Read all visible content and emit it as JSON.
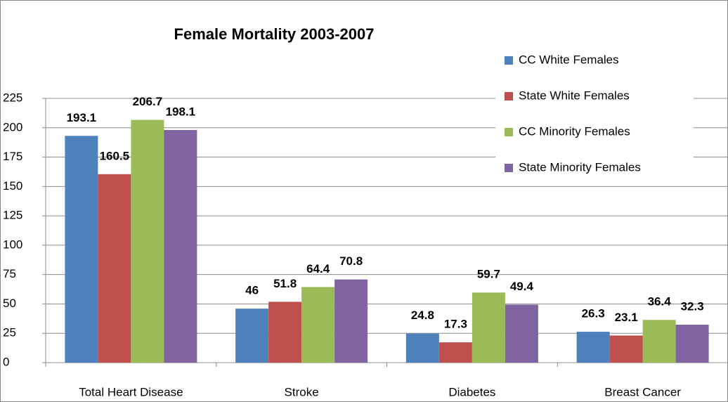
{
  "chart_data": {
    "type": "bar",
    "title": "Female Mortality 2003-2007",
    "categories": [
      "Total Heart Disease",
      "Stroke",
      "Diabetes",
      "Breast Cancer"
    ],
    "series": [
      {
        "name": "CC White Females",
        "color": "#4f81bd",
        "values": [
          193.1,
          46,
          24.8,
          26.3
        ]
      },
      {
        "name": "State White Females",
        "color": "#c0504d",
        "values": [
          160.5,
          51.8,
          17.3,
          23.1
        ]
      },
      {
        "name": "CC Minority Females",
        "color": "#9bbb59",
        "values": [
          206.7,
          64.4,
          59.7,
          36.4
        ]
      },
      {
        "name": "State Minority Females",
        "color": "#8064a2",
        "values": [
          198.1,
          70.8,
          49.4,
          32.3
        ]
      }
    ],
    "ylim": [
      0,
      225
    ],
    "yticks": [
      0,
      25,
      50,
      75,
      100,
      125,
      150,
      175,
      200,
      225
    ],
    "grid": true
  }
}
